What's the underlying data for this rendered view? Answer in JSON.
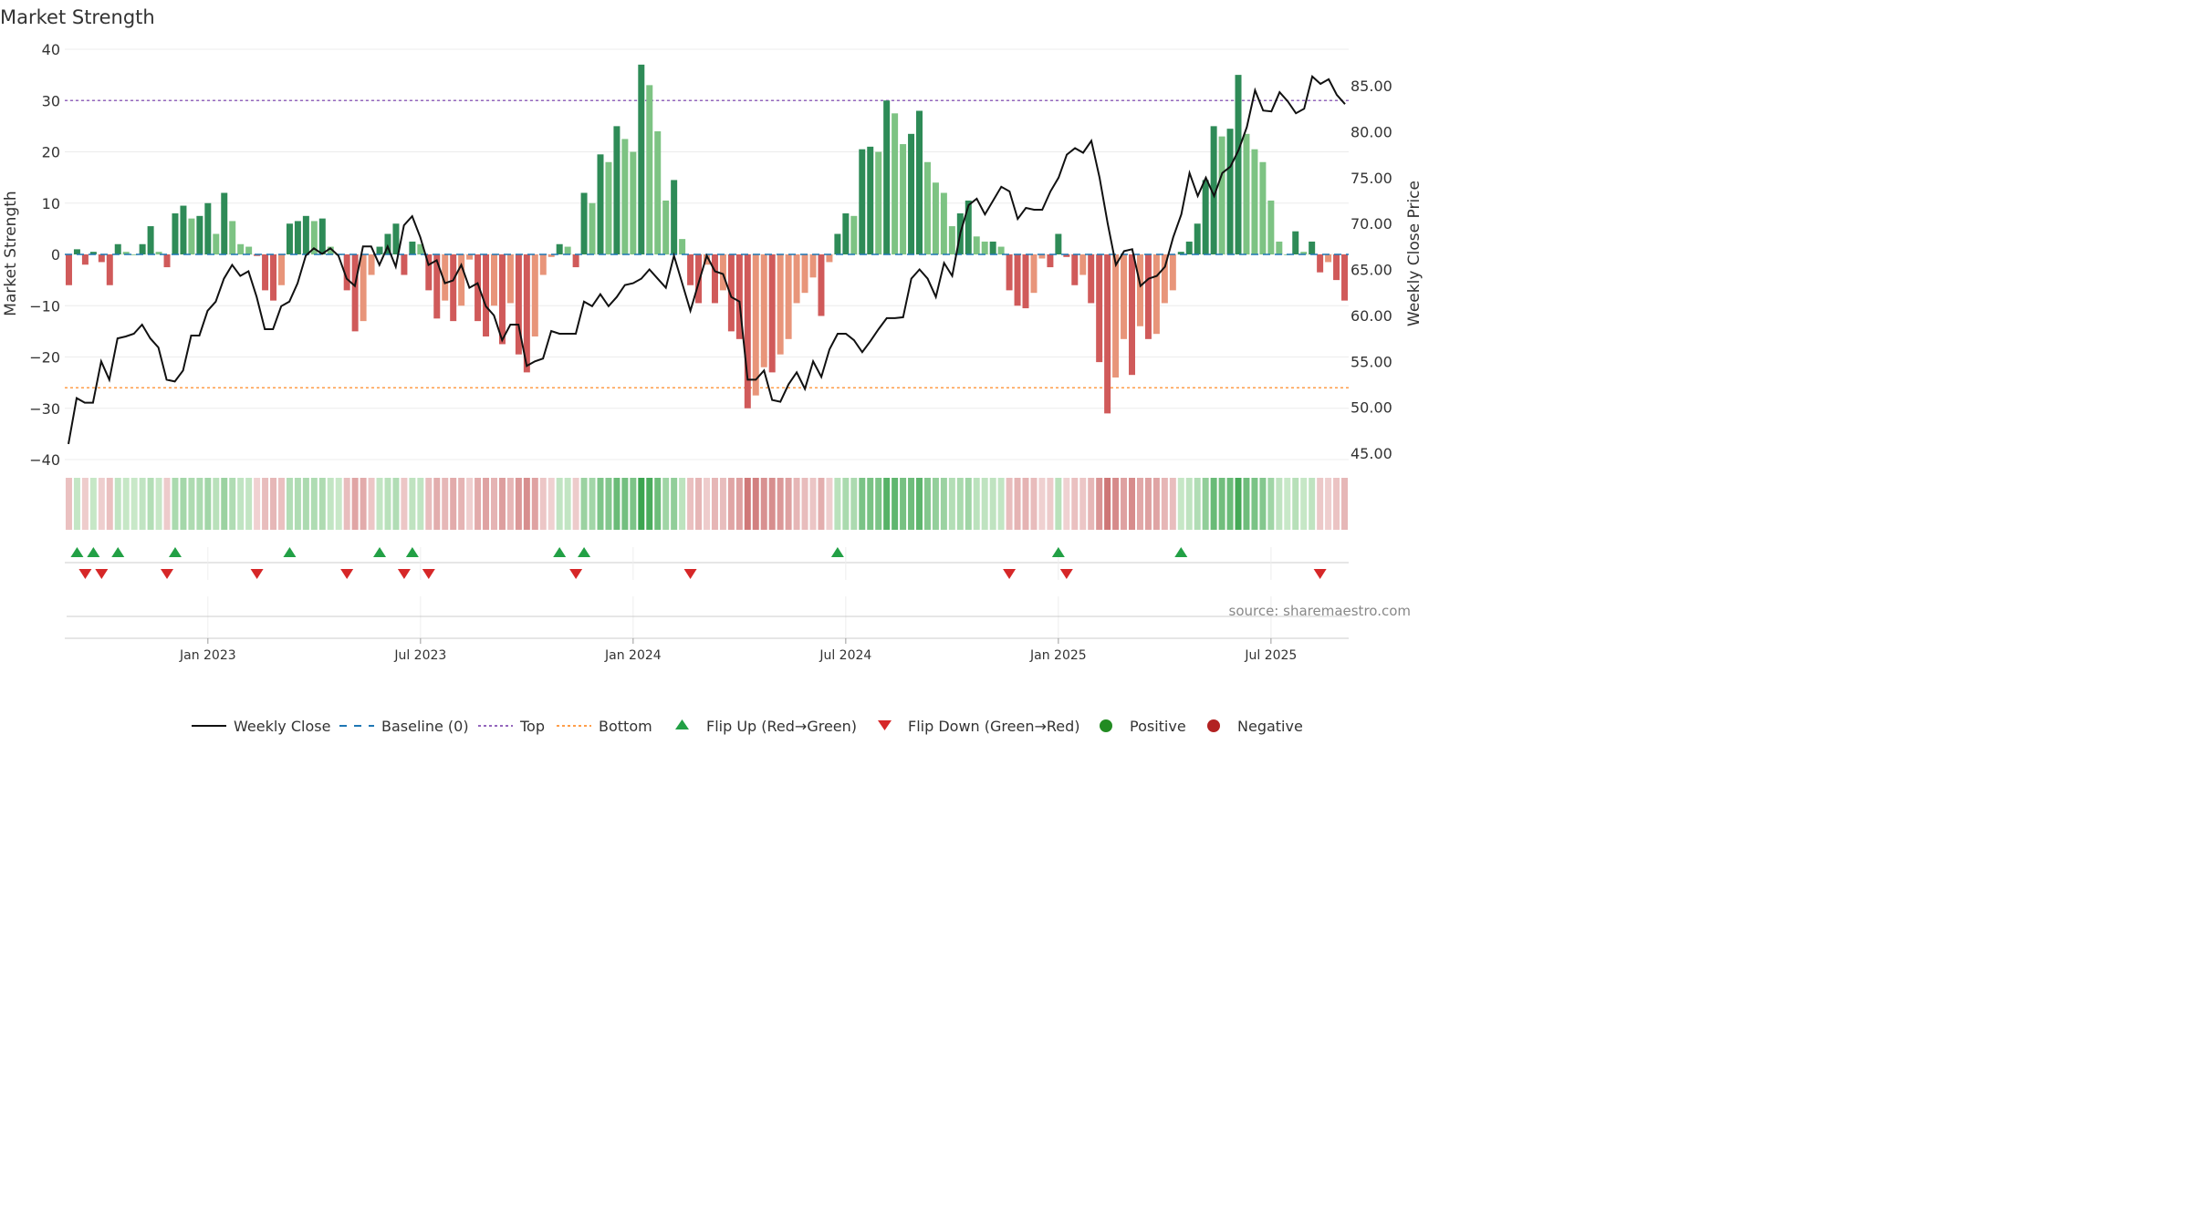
{
  "chart_data": {
    "type": "bar",
    "title": "Market Strength",
    "ylabel": "Market Strength",
    "y2label": "Weekly Close Price",
    "ylim": [
      -40,
      40
    ],
    "y2lim": [
      45,
      88.5
    ],
    "y_ticks": [
      "40",
      "30",
      "20",
      "10",
      "0",
      "−10",
      "−20",
      "−30",
      "−40"
    ],
    "y2_ticks": [
      "85.00",
      "80.00",
      "75.00",
      "70.00",
      "65.00",
      "60.00",
      "55.00",
      "50.00",
      "45.00"
    ],
    "x_ticks": [
      "Jan 2023",
      "Jul 2023",
      "Jan 2024",
      "Jul 2024",
      "Jan 2025",
      "Jul 2025"
    ],
    "top_level": 30,
    "bottom_level": -26,
    "source": "source: sharemaestro.com",
    "legend": [
      "Weekly Close",
      "Baseline (0)",
      "Top",
      "Bottom",
      "Flip Up (Red→Green)",
      "Flip Down (Green→Red)",
      "Positive",
      "Negative"
    ],
    "colors": {
      "pos_strong": "#2e8b57",
      "pos_light": "#7dc383",
      "neg_strong": "#d05a5a",
      "neg_light": "#e8957a",
      "line": "#111111",
      "baseline": "#1f77b4",
      "top": "#9467bd",
      "bottom": "#ff9e4a",
      "flip_up": "#22a045",
      "flip_down": "#d62728",
      "positive_dot": "#228b22",
      "negative_dot": "#b22222"
    },
    "strength": [
      -6,
      1,
      -2,
      0.5,
      -1.5,
      -6,
      2,
      0.5,
      0,
      2,
      5.5,
      0.5,
      -2.5,
      8,
      9.5,
      7,
      7.5,
      10,
      4,
      12,
      6.5,
      2,
      1.5,
      -0.3,
      -7,
      -9,
      -6,
      6,
      6.5,
      7.5,
      6.5,
      7,
      1.5,
      0,
      -7,
      -15,
      -13,
      -4,
      1.5,
      4,
      6,
      -4,
      2.5,
      2,
      -7,
      -12.5,
      -9,
      -13,
      -10,
      -1,
      -13,
      -16,
      -10,
      -17.5,
      -9.5,
      -19.5,
      -23,
      -16,
      -4,
      -0.5,
      2,
      1.5,
      -2.5,
      12,
      10,
      19.5,
      18,
      25,
      22.5,
      20,
      37,
      33,
      24,
      10.5,
      14.5,
      3,
      -6,
      -9.5,
      -2,
      -9.5,
      -7,
      -15,
      -16.5,
      -30,
      -27.5,
      -22,
      -23,
      -19.5,
      -16.5,
      -9.5,
      -7.5,
      -4.5,
      -12,
      -1.5,
      4,
      8,
      7.5,
      20.5,
      21,
      20,
      30,
      27.5,
      21.5,
      23.5,
      28,
      18,
      14,
      12,
      5.5,
      8,
      10.5,
      3.5,
      2.5,
      2.5,
      1.5,
      -7,
      -10,
      -10.5,
      -7.5,
      -0.8,
      -2.5,
      4,
      -0.5,
      -6,
      -4,
      -9.5,
      -21,
      -31,
      -24,
      -16.5,
      -23.5,
      -14,
      -16.5,
      -15.5,
      -9.5,
      -7,
      0.5,
      2.5,
      6,
      14.5,
      25,
      23,
      24.5,
      35,
      23.5,
      20.5,
      18,
      10.5,
      2.5,
      0,
      4.5,
      0.5,
      2.5,
      -3.5,
      -1.5,
      -5,
      -9
    ],
    "weekly_close": [
      46,
      51,
      50.5,
      50.5,
      55,
      53,
      57.5,
      57.7,
      58,
      59,
      57.5,
      56.5,
      53,
      52.8,
      54,
      57.8,
      57.8,
      60.5,
      61.5,
      64,
      65.5,
      64.3,
      64.8,
      62,
      58.5,
      58.5,
      61,
      61.5,
      63.5,
      66.5,
      67.3,
      66.7,
      67.3,
      66.5,
      64,
      63.2,
      67.5,
      67.5,
      65.5,
      67.5,
      65.3,
      69.8,
      70.8,
      68.5,
      65.5,
      66,
      63.5,
      63.8,
      65.5,
      63,
      63.5,
      61,
      60,
      57.3,
      59,
      59,
      54.5,
      55,
      55.3,
      58.3,
      58,
      58,
      58,
      61.5,
      61,
      62.3,
      61,
      62,
      63.3,
      63.5,
      64,
      65,
      64,
      63,
      66.5,
      63.5,
      60.5,
      63.5,
      66.5,
      64.8,
      64.5,
      62,
      61.5,
      53,
      53,
      54,
      50.8,
      50.6,
      52.5,
      53.8,
      52,
      55,
      53.3,
      56.3,
      58,
      58,
      57.3,
      56,
      57.2,
      58.5,
      59.7,
      59.7,
      59.8,
      64,
      65,
      64,
      62,
      65.7,
      64.3,
      69,
      72,
      72.7,
      71,
      72.5,
      74,
      73.5,
      70.5,
      71.7,
      71.5,
      71.5,
      73.5,
      75,
      77.5,
      78.2,
      77.7,
      79,
      75,
      70,
      65.5,
      67,
      67.2,
      63.2,
      64,
      64.3,
      65.3,
      68.5,
      71,
      75.5,
      73,
      75,
      73,
      75.5,
      76.2,
      78,
      80.5,
      84.5,
      82.3,
      82.2,
      84.3,
      83.3,
      82,
      82.5,
      86,
      85.2,
      85.7,
      84,
      83
    ]
  }
}
